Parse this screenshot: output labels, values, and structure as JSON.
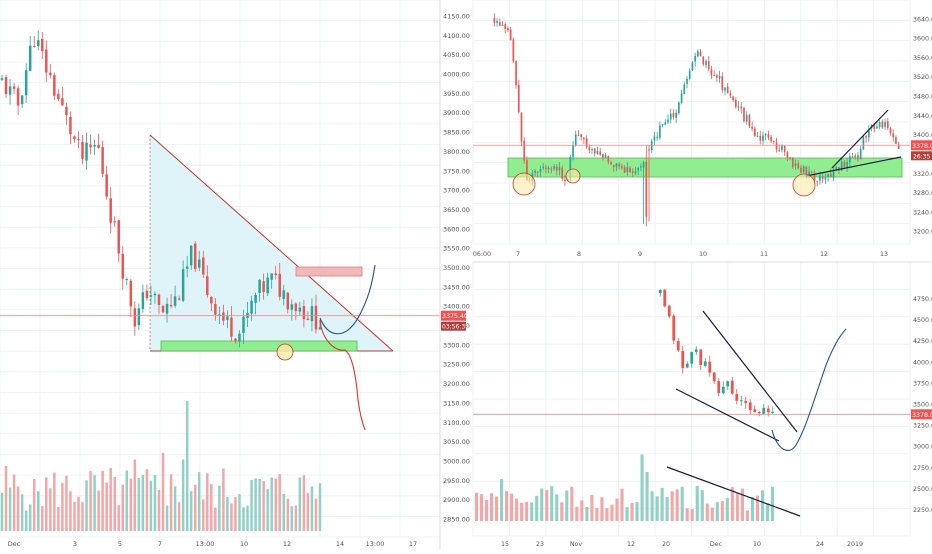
{
  "colors": {
    "up": "#26a69a",
    "down": "#ef5350",
    "vol_up": "#8fd1c4",
    "vol_down": "#f4a6a6",
    "grid": "#eef1f5",
    "price_line": "#f28b8b",
    "price_tag_bg": "#ef5350",
    "tag_text": "#ffffff",
    "support_fill": "#90ee90",
    "resistance_fill": "#f2b8b8",
    "triangle_fill": "#dff4f8",
    "triangle_stroke": "#c0392b",
    "projection_blue": "#1f4e9e",
    "projection_red": "#e0312c",
    "trendline": "#1a1a40",
    "circle_fill": "#fde9a8",
    "circle_stroke": "#c0392b",
    "axis_text": "#555555"
  },
  "chart_data": [
    {
      "id": "left_panel",
      "type": "candlestick",
      "x_tick_labels": [
        "Dec",
        "3",
        "5",
        "7",
        "13:00",
        "10",
        "12",
        "14",
        "13:00",
        "17"
      ],
      "y_tick_labels": [
        "4150.00",
        "4100.00",
        "4050.00",
        "4000.00",
        "3950.00",
        "3900.00",
        "3850.00",
        "3800.00",
        "3750.00",
        "3700.00",
        "3650.00",
        "3600.00",
        "3550.00",
        "3500.00",
        "3450.00",
        "3400.00",
        "3350.00",
        "3300.00",
        "3250.00",
        "3200.00",
        "3150.00",
        "3100.00",
        "3050.00",
        "3000.00",
        "2950.00",
        "2900.00",
        "2850.00"
      ],
      "ylim": [
        2850,
        4150
      ],
      "last_price": "3375.40",
      "countdown": "03:56:35",
      "annotations": [
        "descending-triangle",
        "support-zone",
        "resistance-zone",
        "projection-up",
        "projection-down",
        "touch-circle"
      ]
    },
    {
      "id": "top_right_panel",
      "type": "candlestick",
      "x_tick_labels": [
        "06:00",
        "7",
        "8",
        "9",
        "10",
        "11",
        "12",
        "13"
      ],
      "y_tick_labels": [
        "3640.0",
        "3600.0",
        "3560.0",
        "3520.0",
        "3480.0",
        "3440.0",
        "3400.0",
        "3360.0",
        "3320.0",
        "3280.0",
        "3240.0",
        "3200.0"
      ],
      "ylim": [
        3190,
        3650
      ],
      "last_price": "3378.0",
      "countdown": "26:35",
      "annotations": [
        "support-zone",
        "rising-trendline",
        "touch-circles"
      ]
    },
    {
      "id": "bottom_right_panel",
      "type": "candlestick",
      "x_tick_labels": [
        "15",
        "23",
        "Nov",
        "12",
        "20",
        "Dec",
        "10",
        "24",
        "2019"
      ],
      "y_tick_labels": [
        "4750.0",
        "4500.0",
        "4250.0",
        "4000.0",
        "3750.0",
        "3500.0",
        "3250.0",
        "3000.0",
        "2750.0",
        "2500.0",
        "2250.0"
      ],
      "ylim": [
        2150,
        4850
      ],
      "last_price": "3378.0",
      "annotations": [
        "falling-wedge",
        "projection-up",
        "volume-trendline"
      ]
    }
  ]
}
